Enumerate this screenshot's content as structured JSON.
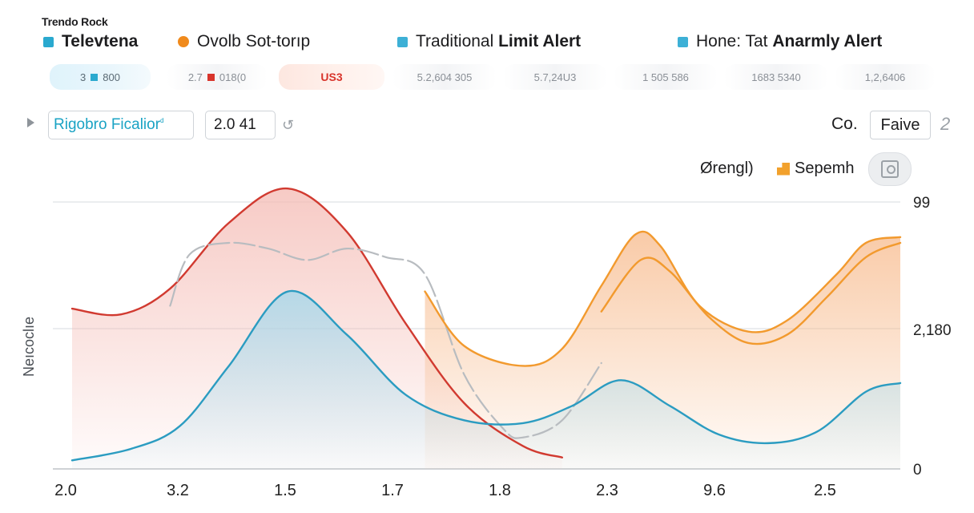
{
  "app_title": "Trendo Rock",
  "legend": [
    {
      "pre": "",
      "bold": "Televtena",
      "color": "#2aa9cf",
      "shape": "square"
    },
    {
      "pre": "Ovolb Sot-torıp",
      "bold": "",
      "color": "#f08a1c",
      "shape": "circle"
    },
    {
      "pre": "Traditional ",
      "bold": "Limit Alert",
      "color": "#3db0d6",
      "shape": "square"
    },
    {
      "pre": "Hone: Tat ",
      "bold": "Anarmly Alert",
      "color": "#3db0d6",
      "shape": "square"
    }
  ],
  "chips": [
    {
      "text": "3",
      "text2": "800",
      "marker_color": "#2aa9cf"
    },
    {
      "text": "2.7",
      "text2": "018(0",
      "marker_color": "#d8342b"
    },
    {
      "text": "US3",
      "text2": "",
      "marker_color": ""
    },
    {
      "text": "5.2,604 305",
      "text2": "",
      "marker_color": ""
    },
    {
      "text": "5.7,24U3",
      "text2": "",
      "marker_color": ""
    },
    {
      "text": "1 505 586",
      "text2": "",
      "marker_color": ""
    },
    {
      "text": "1683 5340",
      "text2": "",
      "marker_color": ""
    },
    {
      "text": "1,2,6406",
      "text2": "",
      "marker_color": ""
    }
  ],
  "controls": {
    "field_a": "Rigobro Ficalior",
    "field_a_mark": "ᵈ",
    "field_b": "2.0 41",
    "co_label": "Co.",
    "field_c": "Faive",
    "num_icon": "2"
  },
  "legend2": {
    "a": "Ørengl)",
    "b": "Sepemh"
  },
  "chart_data": {
    "type": "area",
    "ylabel": "Neıcoclıe",
    "x_tick_labels": [
      "2.0",
      "3.2",
      "1.5",
      "1.7",
      "1.8",
      "2.3",
      "9.6",
      "2.5"
    ],
    "y_tick_labels": [
      "99",
      "2,180",
      "0"
    ],
    "grid": true,
    "series": [
      {
        "color": "#d13a30",
        "fill": "#f4b9b2",
        "points": [
          [
            0,
            0.56
          ],
          [
            0.5,
            0.54
          ],
          [
            1.0,
            0.63
          ],
          [
            1.6,
            0.86
          ],
          [
            2.2,
            0.98
          ],
          [
            2.8,
            0.83
          ],
          [
            3.4,
            0.51
          ],
          [
            4.0,
            0.23
          ],
          [
            4.6,
            0.08
          ],
          [
            5.0,
            0.04
          ]
        ]
      },
      {
        "color": "#b8bcc0",
        "fill": "",
        "points": [
          [
            1.0,
            0.57
          ],
          [
            1.2,
            0.75
          ],
          [
            1.6,
            0.79
          ],
          [
            2.0,
            0.77
          ],
          [
            2.4,
            0.73
          ],
          [
            2.8,
            0.77
          ],
          [
            3.2,
            0.74
          ],
          [
            3.6,
            0.68
          ],
          [
            4.0,
            0.33
          ],
          [
            4.4,
            0.14
          ],
          [
            4.6,
            0.11
          ],
          [
            5.0,
            0.17
          ],
          [
            5.4,
            0.37
          ]
        ]
      },
      {
        "color": "#f29a2e",
        "fill": "#f7b98a",
        "points": [
          [
            3.6,
            0.62
          ],
          [
            4.0,
            0.43
          ],
          [
            4.6,
            0.36
          ],
          [
            5.0,
            0.42
          ],
          [
            5.4,
            0.64
          ],
          [
            5.75,
            0.82
          ],
          [
            6.0,
            0.78
          ],
          [
            6.4,
            0.57
          ],
          [
            6.9,
            0.48
          ],
          [
            7.3,
            0.52
          ],
          [
            7.8,
            0.68
          ],
          [
            8.1,
            0.79
          ],
          [
            8.45,
            0.81
          ]
        ]
      },
      {
        "color": "#f29a2e",
        "fill": "",
        "points": [
          [
            5.4,
            0.55
          ],
          [
            5.8,
            0.73
          ],
          [
            6.1,
            0.69
          ],
          [
            6.5,
            0.53
          ],
          [
            6.9,
            0.44
          ],
          [
            7.3,
            0.47
          ],
          [
            7.7,
            0.6
          ],
          [
            8.1,
            0.74
          ],
          [
            8.45,
            0.79
          ]
        ]
      },
      {
        "color": "#2b9cc1",
        "fill": "#9fd7ec",
        "points": [
          [
            0,
            0.03
          ],
          [
            0.6,
            0.07
          ],
          [
            1.1,
            0.15
          ],
          [
            1.6,
            0.36
          ],
          [
            2.2,
            0.62
          ],
          [
            2.8,
            0.47
          ],
          [
            3.4,
            0.26
          ],
          [
            4.0,
            0.17
          ],
          [
            4.6,
            0.16
          ],
          [
            5.1,
            0.22
          ],
          [
            5.6,
            0.31
          ],
          [
            6.1,
            0.22
          ],
          [
            6.6,
            0.12
          ],
          [
            7.1,
            0.09
          ],
          [
            7.6,
            0.13
          ],
          [
            8.1,
            0.27
          ],
          [
            8.45,
            0.3
          ]
        ]
      }
    ]
  }
}
